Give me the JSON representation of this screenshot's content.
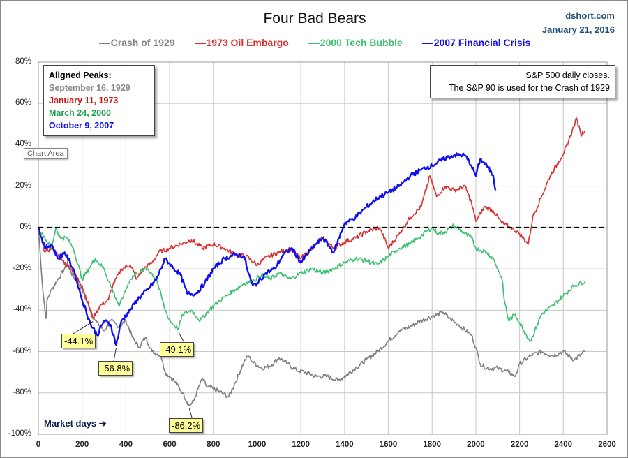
{
  "header": {
    "title": "Four Bad Bears",
    "source": "dshort.com",
    "date": "January 21, 2016"
  },
  "peaks_box": {
    "heading": "Aligned Peaks:",
    "dates": [
      "September 16, 1929",
      "January 11, 1973",
      "March 24, 2000",
      "October 9, 2007"
    ]
  },
  "note_box": {
    "line1": "S&P 500 daily closes.",
    "line2": "The S&P 90 is used for the Crash of 1929"
  },
  "tooltip": "Chart Area",
  "x_axis_note": "Market days ➔",
  "chart_data": {
    "type": "line",
    "title": "Four Bad Bears",
    "xlabel": "Market days",
    "ylabel": "",
    "xlim": [
      0,
      2600
    ],
    "ylim": [
      -100,
      80
    ],
    "xticks": [
      "0",
      "200",
      "400",
      "600",
      "800",
      "1000",
      "1200",
      "1400",
      "1600",
      "1800",
      "2000",
      "2200",
      "2400",
      "2600"
    ],
    "yticks": [
      "80%",
      "60%",
      "40%",
      "20%",
      "0%",
      "-20%",
      "-40%",
      "-60%",
      "-80%",
      "-100%"
    ],
    "grid": true,
    "legend_position": "top",
    "baseline": 0,
    "series": [
      {
        "name": "Crash of 1929",
        "color": "#7f7f7f",
        "points": [
          [
            0,
            0
          ],
          [
            20,
            -30
          ],
          [
            35,
            -44
          ],
          [
            40,
            -35
          ],
          [
            60,
            -30
          ],
          [
            90,
            -25
          ],
          [
            120,
            -20
          ],
          [
            140,
            -15
          ],
          [
            150,
            -22
          ],
          [
            200,
            -30
          ],
          [
            230,
            -38
          ],
          [
            260,
            -45
          ],
          [
            300,
            -50
          ],
          [
            330,
            -45
          ],
          [
            370,
            -48
          ],
          [
            400,
            -45
          ],
          [
            430,
            -53
          ],
          [
            460,
            -58
          ],
          [
            490,
            -53
          ],
          [
            520,
            -60
          ],
          [
            560,
            -62
          ],
          [
            580,
            -70
          ],
          [
            620,
            -74
          ],
          [
            660,
            -80
          ],
          [
            690,
            -86.2
          ],
          [
            710,
            -84
          ],
          [
            730,
            -78
          ],
          [
            750,
            -73
          ],
          [
            770,
            -77
          ],
          [
            800,
            -78
          ],
          [
            840,
            -80
          ],
          [
            870,
            -82
          ],
          [
            900,
            -75
          ],
          [
            940,
            -65
          ],
          [
            960,
            -62
          ],
          [
            980,
            -65
          ],
          [
            1020,
            -68
          ],
          [
            1060,
            -67
          ],
          [
            1100,
            -63
          ],
          [
            1140,
            -66
          ],
          [
            1180,
            -69
          ],
          [
            1220,
            -70
          ],
          [
            1270,
            -72
          ],
          [
            1320,
            -72
          ],
          [
            1370,
            -74
          ],
          [
            1400,
            -72
          ],
          [
            1450,
            -68
          ],
          [
            1500,
            -64
          ],
          [
            1550,
            -60
          ],
          [
            1600,
            -55
          ],
          [
            1650,
            -50
          ],
          [
            1700,
            -48
          ],
          [
            1750,
            -45
          ],
          [
            1800,
            -43
          ],
          [
            1850,
            -41
          ],
          [
            1880,
            -44
          ],
          [
            1920,
            -47
          ],
          [
            1980,
            -52
          ],
          [
            2000,
            -58
          ],
          [
            2020,
            -66
          ],
          [
            2050,
            -68
          ],
          [
            2100,
            -68
          ],
          [
            2150,
            -70
          ],
          [
            2180,
            -72
          ],
          [
            2200,
            -66
          ],
          [
            2250,
            -62
          ],
          [
            2300,
            -60
          ],
          [
            2350,
            -62
          ],
          [
            2400,
            -60
          ],
          [
            2450,
            -64
          ],
          [
            2500,
            -60
          ]
        ]
      },
      {
        "name": "1973 Oil Embargo",
        "color": "#d9302f",
        "points": [
          [
            0,
            0
          ],
          [
            30,
            -12
          ],
          [
            60,
            -10
          ],
          [
            100,
            -15
          ],
          [
            150,
            -20
          ],
          [
            200,
            -28
          ],
          [
            250,
            -44.1
          ],
          [
            280,
            -38
          ],
          [
            320,
            -35
          ],
          [
            340,
            -28
          ],
          [
            380,
            -20
          ],
          [
            420,
            -18
          ],
          [
            450,
            -25
          ],
          [
            480,
            -20
          ],
          [
            520,
            -17
          ],
          [
            550,
            -12
          ],
          [
            600,
            -10
          ],
          [
            650,
            -8
          ],
          [
            700,
            -6
          ],
          [
            750,
            -10
          ],
          [
            800,
            -8
          ],
          [
            850,
            -10
          ],
          [
            900,
            -13
          ],
          [
            950,
            -14
          ],
          [
            1000,
            -18
          ],
          [
            1050,
            -14
          ],
          [
            1100,
            -12
          ],
          [
            1150,
            -10
          ],
          [
            1200,
            -15
          ],
          [
            1250,
            -10
          ],
          [
            1300,
            -5
          ],
          [
            1350,
            -10
          ],
          [
            1400,
            -7
          ],
          [
            1450,
            -5
          ],
          [
            1500,
            -2
          ],
          [
            1560,
            0
          ],
          [
            1600,
            -10
          ],
          [
            1650,
            -3
          ],
          [
            1700,
            5
          ],
          [
            1750,
            10
          ],
          [
            1790,
            25
          ],
          [
            1820,
            15
          ],
          [
            1860,
            20
          ],
          [
            1900,
            18
          ],
          [
            1950,
            20
          ],
          [
            1980,
            12
          ],
          [
            2000,
            3
          ],
          [
            2040,
            10
          ],
          [
            2080,
            8
          ],
          [
            2120,
            2
          ],
          [
            2160,
            0
          ],
          [
            2200,
            -3
          ],
          [
            2240,
            -8
          ],
          [
            2260,
            5
          ],
          [
            2300,
            15
          ],
          [
            2340,
            25
          ],
          [
            2380,
            32
          ],
          [
            2420,
            40
          ],
          [
            2460,
            53
          ],
          [
            2480,
            45
          ],
          [
            2500,
            47
          ]
        ]
      },
      {
        "name": "2000 Tech Bubble",
        "color": "#3cbf6e",
        "points": [
          [
            0,
            0
          ],
          [
            30,
            -5
          ],
          [
            60,
            -10
          ],
          [
            80,
            0
          ],
          [
            100,
            -5
          ],
          [
            130,
            -5
          ],
          [
            160,
            -10
          ],
          [
            200,
            -25
          ],
          [
            230,
            -20
          ],
          [
            260,
            -15
          ],
          [
            300,
            -20
          ],
          [
            330,
            -28
          ],
          [
            370,
            -38
          ],
          [
            400,
            -30
          ],
          [
            420,
            -25
          ],
          [
            450,
            -22
          ],
          [
            500,
            -20
          ],
          [
            540,
            -25
          ],
          [
            580,
            -40
          ],
          [
            600,
            -45
          ],
          [
            640,
            -49.1
          ],
          [
            660,
            -42
          ],
          [
            700,
            -40
          ],
          [
            740,
            -45
          ],
          [
            780,
            -40
          ],
          [
            820,
            -36
          ],
          [
            860,
            -33
          ],
          [
            900,
            -30
          ],
          [
            940,
            -27
          ],
          [
            980,
            -26
          ],
          [
            1020,
            -23
          ],
          [
            1060,
            -25
          ],
          [
            1100,
            -22
          ],
          [
            1150,
            -25
          ],
          [
            1200,
            -22
          ],
          [
            1250,
            -20
          ],
          [
            1300,
            -22
          ],
          [
            1350,
            -20
          ],
          [
            1400,
            -17
          ],
          [
            1450,
            -15
          ],
          [
            1500,
            -16
          ],
          [
            1550,
            -18
          ],
          [
            1600,
            -14
          ],
          [
            1650,
            -10
          ],
          [
            1700,
            -8
          ],
          [
            1750,
            -4
          ],
          [
            1800,
            0
          ],
          [
            1830,
            -3
          ],
          [
            1860,
            -2
          ],
          [
            1900,
            1
          ],
          [
            1950,
            -3
          ],
          [
            1980,
            -5
          ],
          [
            2000,
            -10
          ],
          [
            2050,
            -12
          ],
          [
            2080,
            -15
          ],
          [
            2100,
            -20
          ],
          [
            2120,
            -25
          ],
          [
            2130,
            -35
          ],
          [
            2150,
            -45
          ],
          [
            2180,
            -42
          ],
          [
            2220,
            -50
          ],
          [
            2250,
            -55
          ],
          [
            2300,
            -42
          ],
          [
            2350,
            -38
          ],
          [
            2400,
            -33
          ],
          [
            2450,
            -28
          ],
          [
            2500,
            -26
          ]
        ]
      },
      {
        "name": "2007 Financial Crisis",
        "color": "#1010ee",
        "points": [
          [
            0,
            0
          ],
          [
            30,
            -10
          ],
          [
            60,
            -8
          ],
          [
            90,
            -15
          ],
          [
            120,
            -12
          ],
          [
            160,
            -20
          ],
          [
            200,
            -35
          ],
          [
            240,
            -47
          ],
          [
            270,
            -52
          ],
          [
            300,
            -45
          ],
          [
            330,
            -47
          ],
          [
            356,
            -56.8
          ],
          [
            380,
            -45
          ],
          [
            420,
            -40
          ],
          [
            450,
            -35
          ],
          [
            500,
            -30
          ],
          [
            540,
            -25
          ],
          [
            580,
            -15
          ],
          [
            620,
            -20
          ],
          [
            650,
            -23
          ],
          [
            680,
            -32
          ],
          [
            720,
            -32
          ],
          [
            760,
            -27
          ],
          [
            800,
            -20
          ],
          [
            850,
            -15
          ],
          [
            900,
            -13
          ],
          [
            940,
            -14
          ],
          [
            960,
            -22
          ],
          [
            980,
            -28
          ],
          [
            1000,
            -27
          ],
          [
            1040,
            -22
          ],
          [
            1080,
            -20
          ],
          [
            1120,
            -13
          ],
          [
            1160,
            -10
          ],
          [
            1200,
            -17
          ],
          [
            1250,
            -10
          ],
          [
            1300,
            -5
          ],
          [
            1350,
            -12
          ],
          [
            1400,
            2
          ],
          [
            1450,
            5
          ],
          [
            1500,
            10
          ],
          [
            1560,
            15
          ],
          [
            1600,
            17
          ],
          [
            1650,
            20
          ],
          [
            1700,
            25
          ],
          [
            1750,
            28
          ],
          [
            1800,
            30
          ],
          [
            1850,
            33
          ],
          [
            1900,
            35
          ],
          [
            1950,
            35
          ],
          [
            1980,
            30
          ],
          [
            2000,
            25
          ],
          [
            2020,
            33
          ],
          [
            2050,
            30
          ],
          [
            2080,
            25
          ],
          [
            2090,
            18
          ]
        ]
      }
    ],
    "annotations": [
      {
        "text": "-44.1%",
        "x": 250,
        "y": -44.1
      },
      {
        "text": "-56.8%",
        "x": 356,
        "y": -56.8
      },
      {
        "text": "-49.1%",
        "x": 640,
        "y": -49.1
      },
      {
        "text": "-86.2%",
        "x": 690,
        "y": -86.2
      }
    ]
  }
}
